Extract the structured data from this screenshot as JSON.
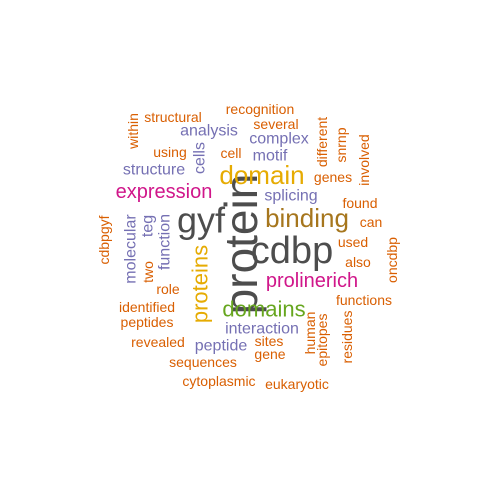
{
  "palette": {
    "dark_gray": "#4d4d4d",
    "olive_brown": "#a6761d",
    "gold": "#e6ab02",
    "magenta": "#d0168a",
    "green": "#66a61e",
    "purple": "#7570b3",
    "orange": "#d95f02"
  },
  "words": [
    {
      "text": "protein",
      "color": "dark_gray",
      "rotated": true
    },
    {
      "text": "gyf",
      "color": "dark_gray",
      "rotated": false
    },
    {
      "text": "cdbp",
      "color": "dark_gray",
      "rotated": false
    },
    {
      "text": "binding",
      "color": "olive_brown",
      "rotated": false
    },
    {
      "text": "domain",
      "color": "gold",
      "rotated": false
    },
    {
      "text": "proteins",
      "color": "gold",
      "rotated": true
    },
    {
      "text": "domains",
      "color": "green",
      "rotated": false
    },
    {
      "text": "prolinerich",
      "color": "magenta",
      "rotated": false
    },
    {
      "text": "expression",
      "color": "magenta",
      "rotated": false
    },
    {
      "text": "splicing",
      "color": "purple",
      "rotated": false
    },
    {
      "text": "interaction",
      "color": "purple",
      "rotated": false
    },
    {
      "text": "structure",
      "color": "purple",
      "rotated": false
    },
    {
      "text": "analysis",
      "color": "purple",
      "rotated": false
    },
    {
      "text": "complex",
      "color": "purple",
      "rotated": false
    },
    {
      "text": "motif",
      "color": "purple",
      "rotated": false
    },
    {
      "text": "peptide",
      "color": "purple",
      "rotated": false
    },
    {
      "text": "molecular",
      "color": "purple",
      "rotated": true
    },
    {
      "text": "function",
      "color": "purple",
      "rotated": true
    },
    {
      "text": "cells",
      "color": "purple",
      "rotated": true
    },
    {
      "text": "teg",
      "color": "purple",
      "rotated": true
    },
    {
      "text": "genes",
      "color": "orange",
      "rotated": false
    },
    {
      "text": "two",
      "color": "orange",
      "rotated": true
    },
    {
      "text": "recognition",
      "color": "orange",
      "rotated": false
    },
    {
      "text": "structural",
      "color": "orange",
      "rotated": false
    },
    {
      "text": "several",
      "color": "orange",
      "rotated": false
    },
    {
      "text": "within",
      "color": "orange",
      "rotated": true
    },
    {
      "text": "using",
      "color": "orange",
      "rotated": false
    },
    {
      "text": "cell",
      "color": "orange",
      "rotated": false
    },
    {
      "text": "different",
      "color": "orange",
      "rotated": true
    },
    {
      "text": "snrnp",
      "color": "orange",
      "rotated": true
    },
    {
      "text": "involved",
      "color": "orange",
      "rotated": true
    },
    {
      "text": "found",
      "color": "orange",
      "rotated": false
    },
    {
      "text": "can",
      "color": "orange",
      "rotated": false
    },
    {
      "text": "used",
      "color": "orange",
      "rotated": false
    },
    {
      "text": "also",
      "color": "orange",
      "rotated": false
    },
    {
      "text": "oncdbp",
      "color": "orange",
      "rotated": true
    },
    {
      "text": "cdbpgyf",
      "color": "orange",
      "rotated": true
    },
    {
      "text": "role",
      "color": "orange",
      "rotated": false
    },
    {
      "text": "identified",
      "color": "orange",
      "rotated": false
    },
    {
      "text": "peptides",
      "color": "orange",
      "rotated": false
    },
    {
      "text": "functions",
      "color": "orange",
      "rotated": false
    },
    {
      "text": "human",
      "color": "orange",
      "rotated": true
    },
    {
      "text": "epitopes",
      "color": "orange",
      "rotated": true
    },
    {
      "text": "residues",
      "color": "orange",
      "rotated": true
    },
    {
      "text": "sites",
      "color": "orange",
      "rotated": false
    },
    {
      "text": "gene",
      "color": "orange",
      "rotated": false
    },
    {
      "text": "revealed",
      "color": "orange",
      "rotated": false
    },
    {
      "text": "sequences",
      "color": "orange",
      "rotated": false
    },
    {
      "text": "cytoplasmic",
      "color": "orange",
      "rotated": false
    },
    {
      "text": "eukaryotic",
      "color": "orange",
      "rotated": false
    }
  ]
}
